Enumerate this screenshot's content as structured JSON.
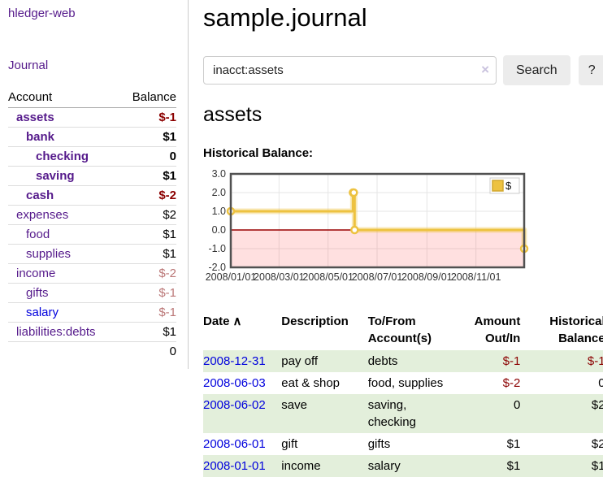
{
  "app": {
    "title": "hledger-web",
    "nav_journal": "Journal"
  },
  "sidebar": {
    "headers": {
      "account": "Account",
      "balance": "Balance"
    },
    "rows": [
      {
        "account": "assets",
        "balance": "$-1",
        "level": 1,
        "bold": true,
        "amount_class": "neg",
        "link_color": "purple"
      },
      {
        "account": "bank",
        "balance": "$1",
        "level": 2,
        "bold": true,
        "amount_class": "",
        "link_color": "purple"
      },
      {
        "account": "checking",
        "balance": "0",
        "level": 3,
        "bold": true,
        "amount_class": "",
        "link_color": "purple"
      },
      {
        "account": "saving",
        "balance": "$1",
        "level": 3,
        "bold": true,
        "amount_class": "",
        "link_color": "purple"
      },
      {
        "account": "cash",
        "balance": "$-2",
        "level": 2,
        "bold": true,
        "amount_class": "neg",
        "link_color": "purple"
      },
      {
        "account": "expenses",
        "balance": "$2",
        "level": 1,
        "bold": false,
        "amount_class": "",
        "link_color": "purple"
      },
      {
        "account": "food",
        "balance": "$1",
        "level": 2,
        "bold": false,
        "amount_class": "",
        "link_color": "purple"
      },
      {
        "account": "supplies",
        "balance": "$1",
        "level": 2,
        "bold": false,
        "amount_class": "",
        "link_color": "purple"
      },
      {
        "account": "income",
        "balance": "$-2",
        "level": 1,
        "bold": false,
        "amount_class": "dimneg",
        "link_color": "purple"
      },
      {
        "account": "gifts",
        "balance": "$-1",
        "level": 2,
        "bold": false,
        "amount_class": "dimneg",
        "link_color": "purple"
      },
      {
        "account": "salary",
        "balance": "$-1",
        "level": 2,
        "bold": false,
        "amount_class": "dimneg",
        "link_color": "blue"
      },
      {
        "account": "liabilities:debts",
        "balance": "$1",
        "level": 1,
        "bold": false,
        "amount_class": "",
        "link_color": "purple"
      }
    ],
    "total": "0"
  },
  "header": {
    "title": "sample.journal"
  },
  "search": {
    "value": "inacct:assets",
    "clear_icon": "×",
    "button_label": "Search",
    "help_label": "?"
  },
  "account_page": {
    "heading": "assets",
    "chart_label": "Historical Balance:"
  },
  "chart_data": {
    "type": "line",
    "step": true,
    "title": "Historical Balance:",
    "x": [
      "2008-01-01",
      "2008-06-01",
      "2008-06-02",
      "2008-06-03",
      "2008-12-31"
    ],
    "series": [
      {
        "name": "$",
        "values": [
          1,
          2,
          2,
          0,
          -1
        ]
      }
    ],
    "x_range": [
      "2008-01-01",
      "2008-12-31"
    ],
    "ylim": [
      -2,
      3
    ],
    "y_ticks": [
      "3.0",
      "2.0",
      "1.0",
      "0.0",
      "-1.0",
      "-2.0"
    ],
    "x_ticks": [
      "2008/01/01",
      "2008/03/01",
      "2008/05/01",
      "2008/07/01",
      "2008/09/01",
      "2008/11/01"
    ],
    "grid": true,
    "legend_position": "top-right",
    "legend": [
      {
        "label": "$",
        "color": "#edc240"
      }
    ],
    "line_color": "#edc240",
    "zero_line_color": "#990000",
    "negative_region_color": "rgba(255,0,0,0.12)",
    "border_color": "#515151",
    "grid_color": "#e6e6e6"
  },
  "register": {
    "columns": [
      "Date",
      "Description",
      "To/From Account(s)",
      "Amount Out/In",
      "Historical Balance"
    ],
    "sort_indicator": "∧",
    "rows": [
      {
        "date": "2008-12-31",
        "description": "pay off",
        "accounts": "debts",
        "amount": "$-1",
        "balance": "$-1",
        "amount_neg": true,
        "balance_neg": true
      },
      {
        "date": "2008-06-03",
        "description": "eat & shop",
        "accounts": "food, supplies",
        "amount": "$-2",
        "balance": "0",
        "amount_neg": true,
        "balance_neg": false
      },
      {
        "date": "2008-06-02",
        "description": "save",
        "accounts": "saving, checking",
        "amount": "0",
        "balance": "$2",
        "amount_neg": false,
        "balance_neg": false
      },
      {
        "date": "2008-06-01",
        "description": "gift",
        "accounts": "gifts",
        "amount": "$1",
        "balance": "$2",
        "amount_neg": false,
        "balance_neg": false
      },
      {
        "date": "2008-01-01",
        "description": "income",
        "accounts": "salary",
        "amount": "$1",
        "balance": "$1",
        "amount_neg": false,
        "balance_neg": false
      }
    ]
  },
  "colors": {
    "link_purple": "#551a8b",
    "link_blue": "#0000dd",
    "negative": "#8b0000",
    "negative_dim": "#bb7777",
    "stripe_green": "#e3efdb",
    "button_bg": "#ececec"
  }
}
